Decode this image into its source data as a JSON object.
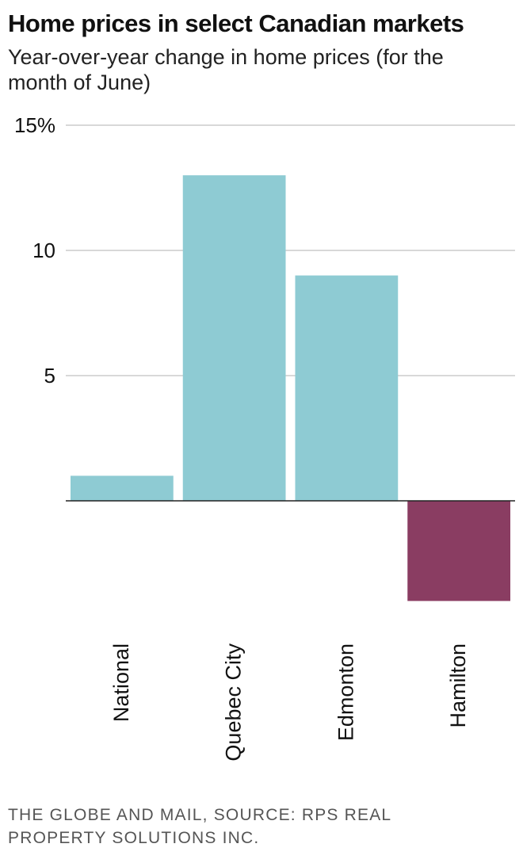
{
  "header": {
    "title": "Home prices in select Canadian markets",
    "subtitle": "Year-over-year change in home prices (for the month of June)"
  },
  "footer": {
    "source": "THE GLOBE AND MAIL, SOURCE: RPS REAL PROPERTY SOLUTIONS INC."
  },
  "chart_data": {
    "type": "bar",
    "title": "Home prices in select Canadian markets",
    "subtitle": "Year-over-year change in home prices (for the month of June)",
    "categories": [
      "National",
      "Quebec City",
      "Edmonton",
      "Hamilton"
    ],
    "values": [
      1.0,
      13.0,
      9.0,
      -4.0
    ],
    "bar_colors": [
      "#8ecbd3",
      "#8ecbd3",
      "#8ecbd3",
      "#8a3d62"
    ],
    "ylim": [
      -4,
      15
    ],
    "yticks": [
      5,
      10,
      15
    ],
    "ytick_labels": [
      "5",
      "10",
      "15%"
    ],
    "grid": true,
    "xlabel": "",
    "ylabel": ""
  }
}
